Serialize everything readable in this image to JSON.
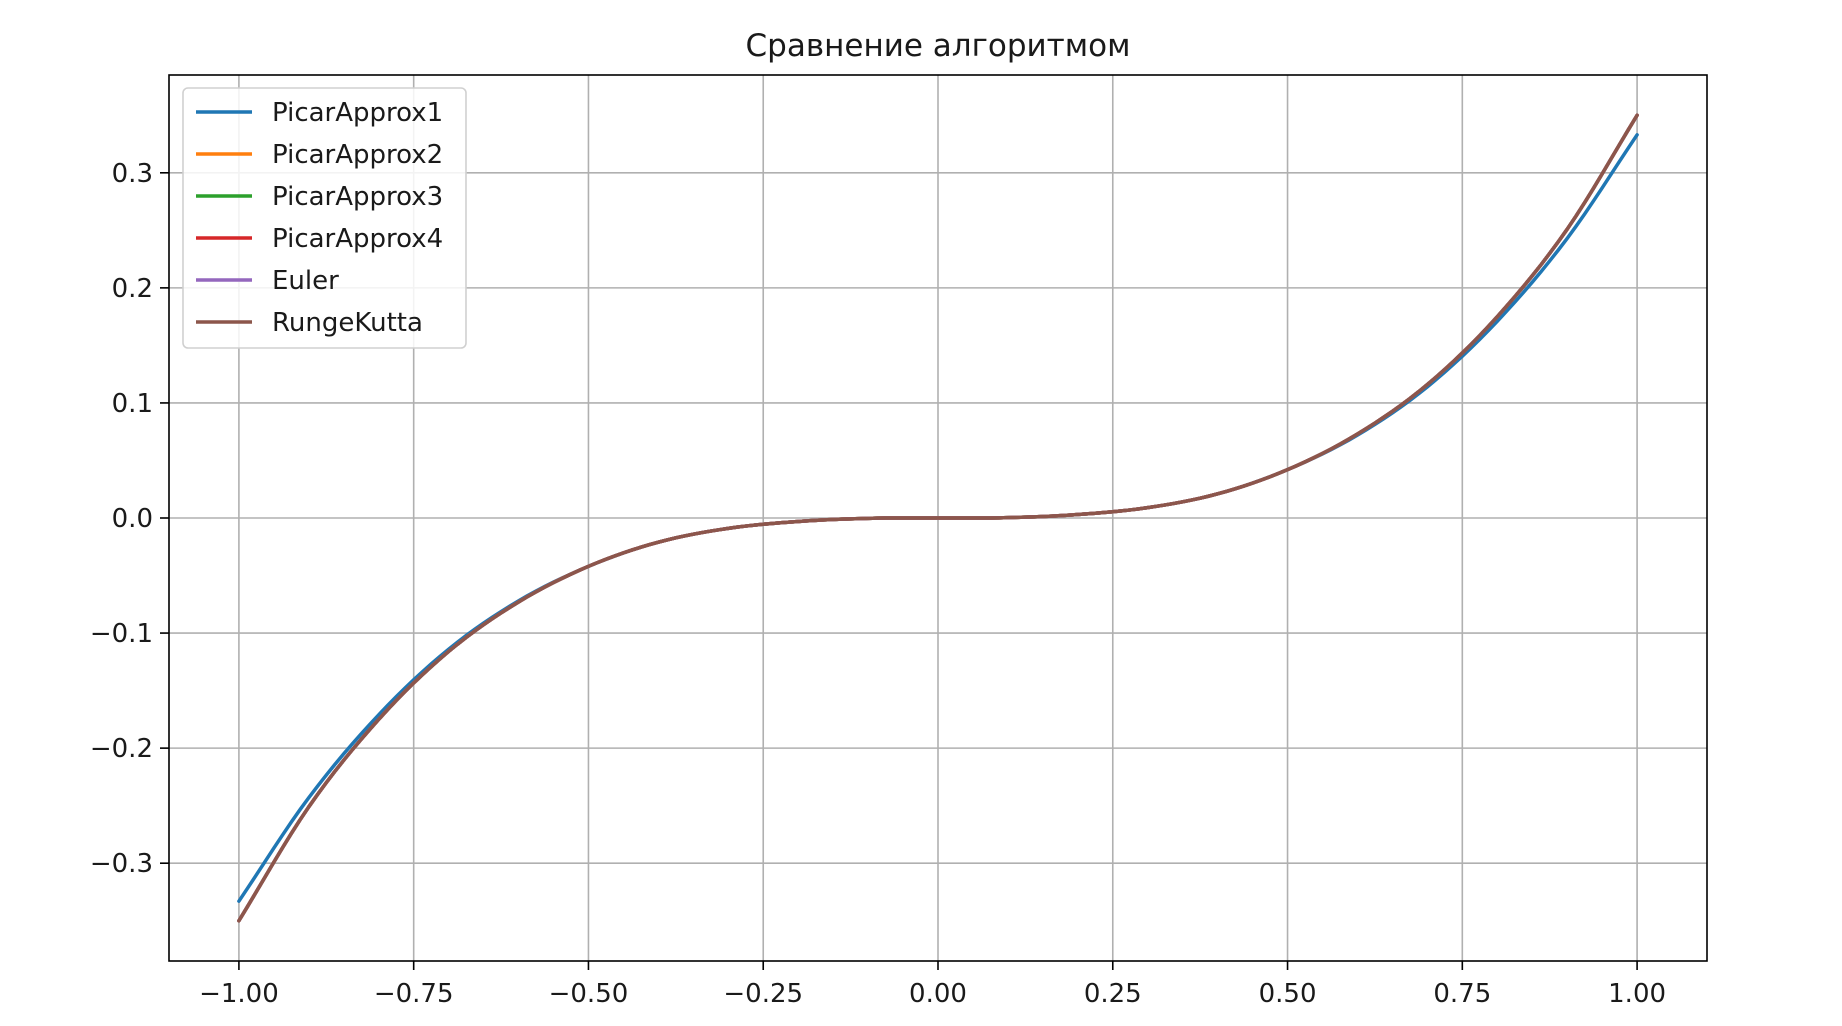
{
  "chart_data": {
    "type": "line",
    "title": "Сравнение алгоритмом",
    "xlabel": "",
    "ylabel": "",
    "xlim": [
      -1.1,
      1.1
    ],
    "ylim": [
      -0.385,
      0.385
    ],
    "grid": true,
    "legend_position": "top-left",
    "x_ticks": [
      -1.0,
      -0.75,
      -0.5,
      -0.25,
      0.0,
      0.25,
      0.5,
      0.75,
      1.0
    ],
    "x_tick_labels": [
      "−1.00",
      "−0.75",
      "−0.50",
      "−0.25",
      "0.00",
      "0.25",
      "0.50",
      "0.75",
      "1.00"
    ],
    "y_ticks": [
      -0.3,
      -0.2,
      -0.1,
      0.0,
      0.1,
      0.2,
      0.3
    ],
    "y_tick_labels": [
      "−0.3",
      "−0.2",
      "−0.1",
      "0.0",
      "0.1",
      "0.2",
      "0.3"
    ],
    "x": [
      -1.0,
      -0.9,
      -0.8,
      -0.7,
      -0.6,
      -0.5,
      -0.4,
      -0.3,
      -0.2,
      -0.1,
      0.0,
      0.1,
      0.2,
      0.3,
      0.4,
      0.5,
      0.6,
      0.7,
      0.8,
      0.9,
      1.0
    ],
    "series": [
      {
        "name": "PicarApprox1",
        "color": "#1f77b4",
        "values": [
          -0.333,
          -0.243,
          -0.171,
          -0.114,
          -0.072,
          -0.042,
          -0.021,
          -0.009,
          -0.003,
          -0.0003,
          0.0,
          0.0003,
          0.003,
          0.009,
          0.021,
          0.042,
          0.072,
          0.114,
          0.171,
          0.243,
          0.333
        ]
      },
      {
        "name": "PicarApprox2",
        "color": "#ff7f0e",
        "values": [
          -0.35,
          -0.251,
          -0.175,
          -0.116,
          -0.073,
          -0.042,
          -0.021,
          -0.009,
          -0.003,
          -0.0003,
          0.0,
          0.0003,
          0.003,
          0.009,
          0.021,
          0.042,
          0.073,
          0.116,
          0.175,
          0.251,
          0.35
        ]
      },
      {
        "name": "PicarApprox3",
        "color": "#2ca02c",
        "values": [
          -0.35,
          -0.251,
          -0.175,
          -0.116,
          -0.073,
          -0.042,
          -0.021,
          -0.009,
          -0.003,
          -0.0003,
          0.0,
          0.0003,
          0.003,
          0.009,
          0.021,
          0.042,
          0.073,
          0.116,
          0.175,
          0.251,
          0.35
        ]
      },
      {
        "name": "PicarApprox4",
        "color": "#d62728",
        "values": [
          -0.35,
          -0.251,
          -0.175,
          -0.116,
          -0.073,
          -0.042,
          -0.021,
          -0.009,
          -0.003,
          -0.0003,
          0.0,
          0.0003,
          0.003,
          0.009,
          0.021,
          0.042,
          0.073,
          0.116,
          0.175,
          0.251,
          0.35
        ]
      },
      {
        "name": "Euler",
        "color": "#9467bd",
        "values": [
          -0.35,
          -0.251,
          -0.175,
          -0.116,
          -0.073,
          -0.042,
          -0.021,
          -0.009,
          -0.003,
          -0.0003,
          0.0,
          0.0003,
          0.003,
          0.009,
          0.021,
          0.042,
          0.073,
          0.116,
          0.175,
          0.251,
          0.35
        ]
      },
      {
        "name": "RungeKutta",
        "color": "#8c564b",
        "values": [
          -0.35,
          -0.251,
          -0.175,
          -0.116,
          -0.073,
          -0.042,
          -0.021,
          -0.009,
          -0.003,
          -0.0003,
          0.0,
          0.0003,
          0.003,
          0.009,
          0.021,
          0.042,
          0.073,
          0.116,
          0.175,
          0.251,
          0.35
        ]
      }
    ]
  }
}
